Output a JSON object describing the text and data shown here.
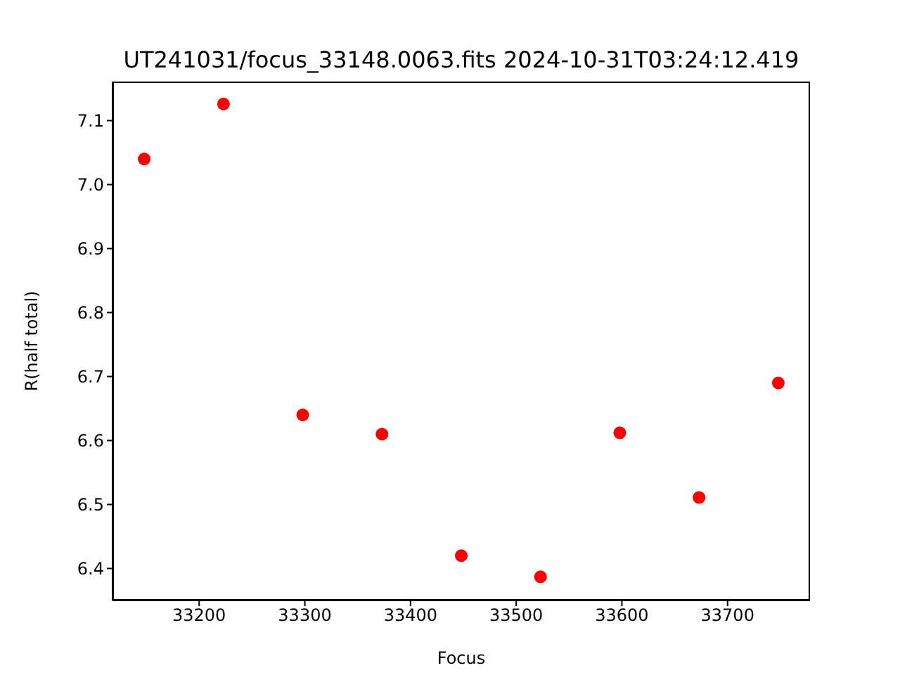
{
  "chart_data": {
    "type": "scatter",
    "title": "UT241031/focus_33148.0063.fits 2024-10-31T03:24:12.419",
    "xlabel": "Focus",
    "ylabel": "R(half total)",
    "x": [
      33148,
      33223,
      33298,
      33373,
      33448,
      33523,
      33598,
      33673,
      33748
    ],
    "series": [
      {
        "color": "#ff0000",
        "values": [
          7.04,
          7.126,
          6.64,
          6.61,
          6.42,
          6.387,
          6.612,
          6.511,
          6.69
        ]
      }
    ],
    "xlim": [
      33118,
      33778
    ],
    "xticks": [
      33200,
      33300,
      33400,
      33500,
      33600,
      33700
    ],
    "ylim": [
      6.35,
      7.161
    ],
    "yticks": [
      6.4,
      6.5,
      6.6,
      6.7,
      6.8,
      6.9,
      {
        "value": 7,
        "label": "7.0"
      },
      7.1
    ],
    "marker": "circle"
  }
}
